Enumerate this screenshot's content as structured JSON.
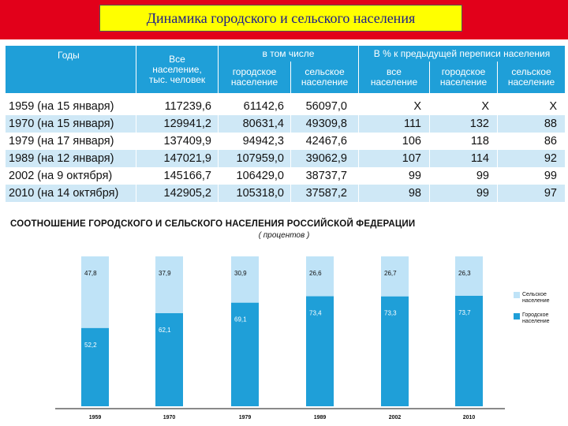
{
  "header": {
    "title": "Динамика городского и сельского населения"
  },
  "table": {
    "headers": {
      "years": "Годы",
      "total_line1": "Все",
      "total_line2": "население,",
      "total_line3": "тыс. человек",
      "incl": "в том числе",
      "pct": "В % к предыдущей переписи населения",
      "urban_line1": "городское",
      "urban_line2": "население",
      "rural_line1": "сельское",
      "rural_line2": "население",
      "all_line1": "все",
      "all_line2": "население",
      "urban2_line1": "городское",
      "urban2_line2": "население",
      "rural2_line1": "сельское",
      "rural2_line2": "население"
    },
    "rows": [
      {
        "year": "1959 (на 15 января)",
        "total": "117239,6",
        "urban": "61142,6",
        "rural": "56097,0",
        "pct_total": "X",
        "pct_urban": "X",
        "pct_rural": "X"
      },
      {
        "year": "1970 (на 15 января)",
        "total": "129941,2",
        "urban": "80631,4",
        "rural": "49309,8",
        "pct_total": "111",
        "pct_urban": "132",
        "pct_rural": "88"
      },
      {
        "year": "1979 (на 17 января)",
        "total": "137409,9",
        "urban": "94942,3",
        "rural": "42467,6",
        "pct_total": "106",
        "pct_urban": "118",
        "pct_rural": "86"
      },
      {
        "year": "1989 (на 12 января)",
        "total": "147021,9",
        "urban": "107959,0",
        "rural": "39062,9",
        "pct_total": "107",
        "pct_urban": "114",
        "pct_rural": "92"
      },
      {
        "year": "2002 (на 9 октября)",
        "total": "145166,7",
        "urban": "106429,0",
        "rural": "38737,7",
        "pct_total": "99",
        "pct_urban": "99",
        "pct_rural": "99"
      },
      {
        "year": "2010 (на 14 октября)",
        "total": "142905,2",
        "urban": "105318,0",
        "rural": "37587,2",
        "pct_total": "98",
        "pct_urban": "99",
        "pct_rural": "97"
      }
    ]
  },
  "chart_data": {
    "type": "bar",
    "stacked": true,
    "title": "СООТНОШЕНИЕ ГОРОДСКОГО И СЕЛЬСКОГО НАСЕЛЕНИЯ РОССИЙСКОЙ ФЕДЕРАЦИИ",
    "subtitle": "( процентов )",
    "categories": [
      "1959",
      "1970",
      "1979",
      "1989",
      "2002",
      "2010"
    ],
    "series": [
      {
        "name": "Городское население",
        "color": "#1f9fd8",
        "values": [
          52.2,
          62.1,
          69.1,
          73.4,
          73.3,
          73.7
        ],
        "labels": [
          "52,2",
          "62,1",
          "69,1",
          "73,4",
          "73,3",
          "73,7"
        ]
      },
      {
        "name": "Сельское население",
        "color": "#bfe3f7",
        "values": [
          47.8,
          37.9,
          30.9,
          26.6,
          26.7,
          26.3
        ],
        "labels": [
          "47,8",
          "37,9",
          "30,9",
          "26,6",
          "26,7",
          "26,3"
        ]
      }
    ],
    "ylim": [
      0,
      100
    ],
    "legend": "right",
    "legend_labels": [
      {
        "line1": "Сельское",
        "line2": "население"
      },
      {
        "line1": "Городское",
        "line2": "население"
      }
    ]
  }
}
